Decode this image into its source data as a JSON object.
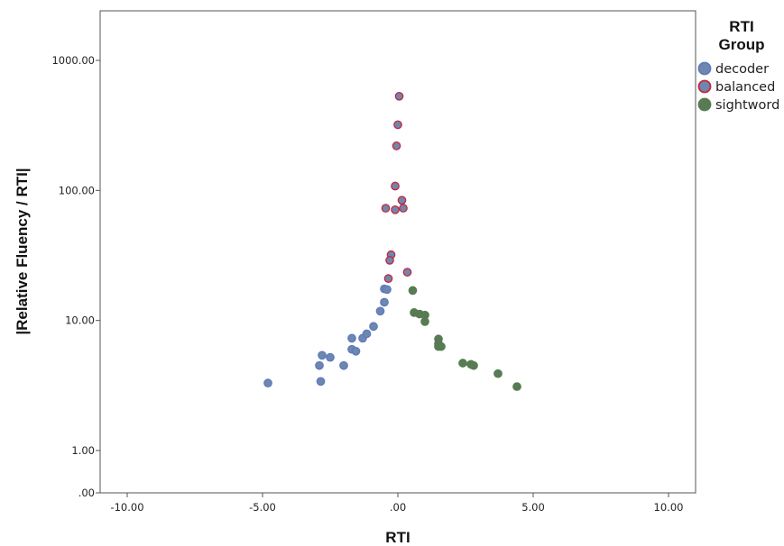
{
  "chart_data": {
    "type": "scatter",
    "xlabel": "RTI",
    "ylabel": "|Relative Fluency / RTI|",
    "x_ticks": [
      {
        "value": -10,
        "label": "-10.00"
      },
      {
        "value": -5,
        "label": "-5.00"
      },
      {
        "value": 0,
        "label": ".00"
      },
      {
        "value": 5,
        "label": "5.00"
      },
      {
        "value": 10,
        "label": "10.00"
      }
    ],
    "y_ticks": [
      {
        "value": 0,
        "label": ".00"
      },
      {
        "value": 1,
        "label": "1.00"
      },
      {
        "value": 10,
        "label": "10.00"
      },
      {
        "value": 100,
        "label": "100.00"
      },
      {
        "value": 1000,
        "label": "1000.00"
      }
    ],
    "xlim": [
      -11,
      11
    ],
    "y_scale": "log (0 placed below 1.00)",
    "grid": false,
    "legend": {
      "title_lines": [
        "RTI",
        "Group"
      ],
      "placement": "right",
      "entries": [
        {
          "label": "decoder",
          "fill": "#6f86ad",
          "edge": "#5b7bbf"
        },
        {
          "label": "balanced",
          "fill": "#6f86ad",
          "edge": "#c4263e"
        },
        {
          "label": "sightword",
          "fill": "#577b53",
          "edge": "#577b53"
        }
      ]
    },
    "series": [
      {
        "name": "decoder",
        "points": [
          {
            "x": -4.8,
            "y": 3.3
          },
          {
            "x": -2.9,
            "y": 4.5
          },
          {
            "x": -2.85,
            "y": 3.4
          },
          {
            "x": -2.8,
            "y": 5.4
          },
          {
            "x": -2.5,
            "y": 5.2
          },
          {
            "x": -2.0,
            "y": 4.5
          },
          {
            "x": -1.7,
            "y": 7.3
          },
          {
            "x": -1.7,
            "y": 6.0
          },
          {
            "x": -1.55,
            "y": 5.8
          },
          {
            "x": -1.3,
            "y": 7.3
          },
          {
            "x": -1.15,
            "y": 7.9
          },
          {
            "x": -0.9,
            "y": 9.0
          },
          {
            "x": -0.65,
            "y": 11.8
          },
          {
            "x": -0.5,
            "y": 13.8
          },
          {
            "x": -0.5,
            "y": 17.5
          },
          {
            "x": -0.4,
            "y": 17.3
          }
        ]
      },
      {
        "name": "balanced",
        "points": [
          {
            "x": 0.05,
            "y": 530
          },
          {
            "x": 0.0,
            "y": 320
          },
          {
            "x": -0.05,
            "y": 220
          },
          {
            "x": -0.1,
            "y": 108
          },
          {
            "x": 0.15,
            "y": 84
          },
          {
            "x": -0.45,
            "y": 73
          },
          {
            "x": -0.1,
            "y": 71
          },
          {
            "x": 0.2,
            "y": 73
          },
          {
            "x": -0.25,
            "y": 32
          },
          {
            "x": -0.3,
            "y": 29
          },
          {
            "x": 0.35,
            "y": 23.5
          },
          {
            "x": -0.35,
            "y": 21
          }
        ]
      },
      {
        "name": "sightword",
        "points": [
          {
            "x": 0.55,
            "y": 17.0
          },
          {
            "x": 0.6,
            "y": 11.5
          },
          {
            "x": 0.8,
            "y": 11.2
          },
          {
            "x": 1.0,
            "y": 11.0
          },
          {
            "x": 1.0,
            "y": 9.8
          },
          {
            "x": 1.5,
            "y": 7.2
          },
          {
            "x": 1.5,
            "y": 6.6
          },
          {
            "x": 1.5,
            "y": 6.3
          },
          {
            "x": 1.6,
            "y": 6.3
          },
          {
            "x": 2.4,
            "y": 4.7
          },
          {
            "x": 2.7,
            "y": 4.6
          },
          {
            "x": 2.8,
            "y": 4.5
          },
          {
            "x": 3.7,
            "y": 3.9
          },
          {
            "x": 4.4,
            "y": 3.1
          }
        ]
      }
    ]
  }
}
